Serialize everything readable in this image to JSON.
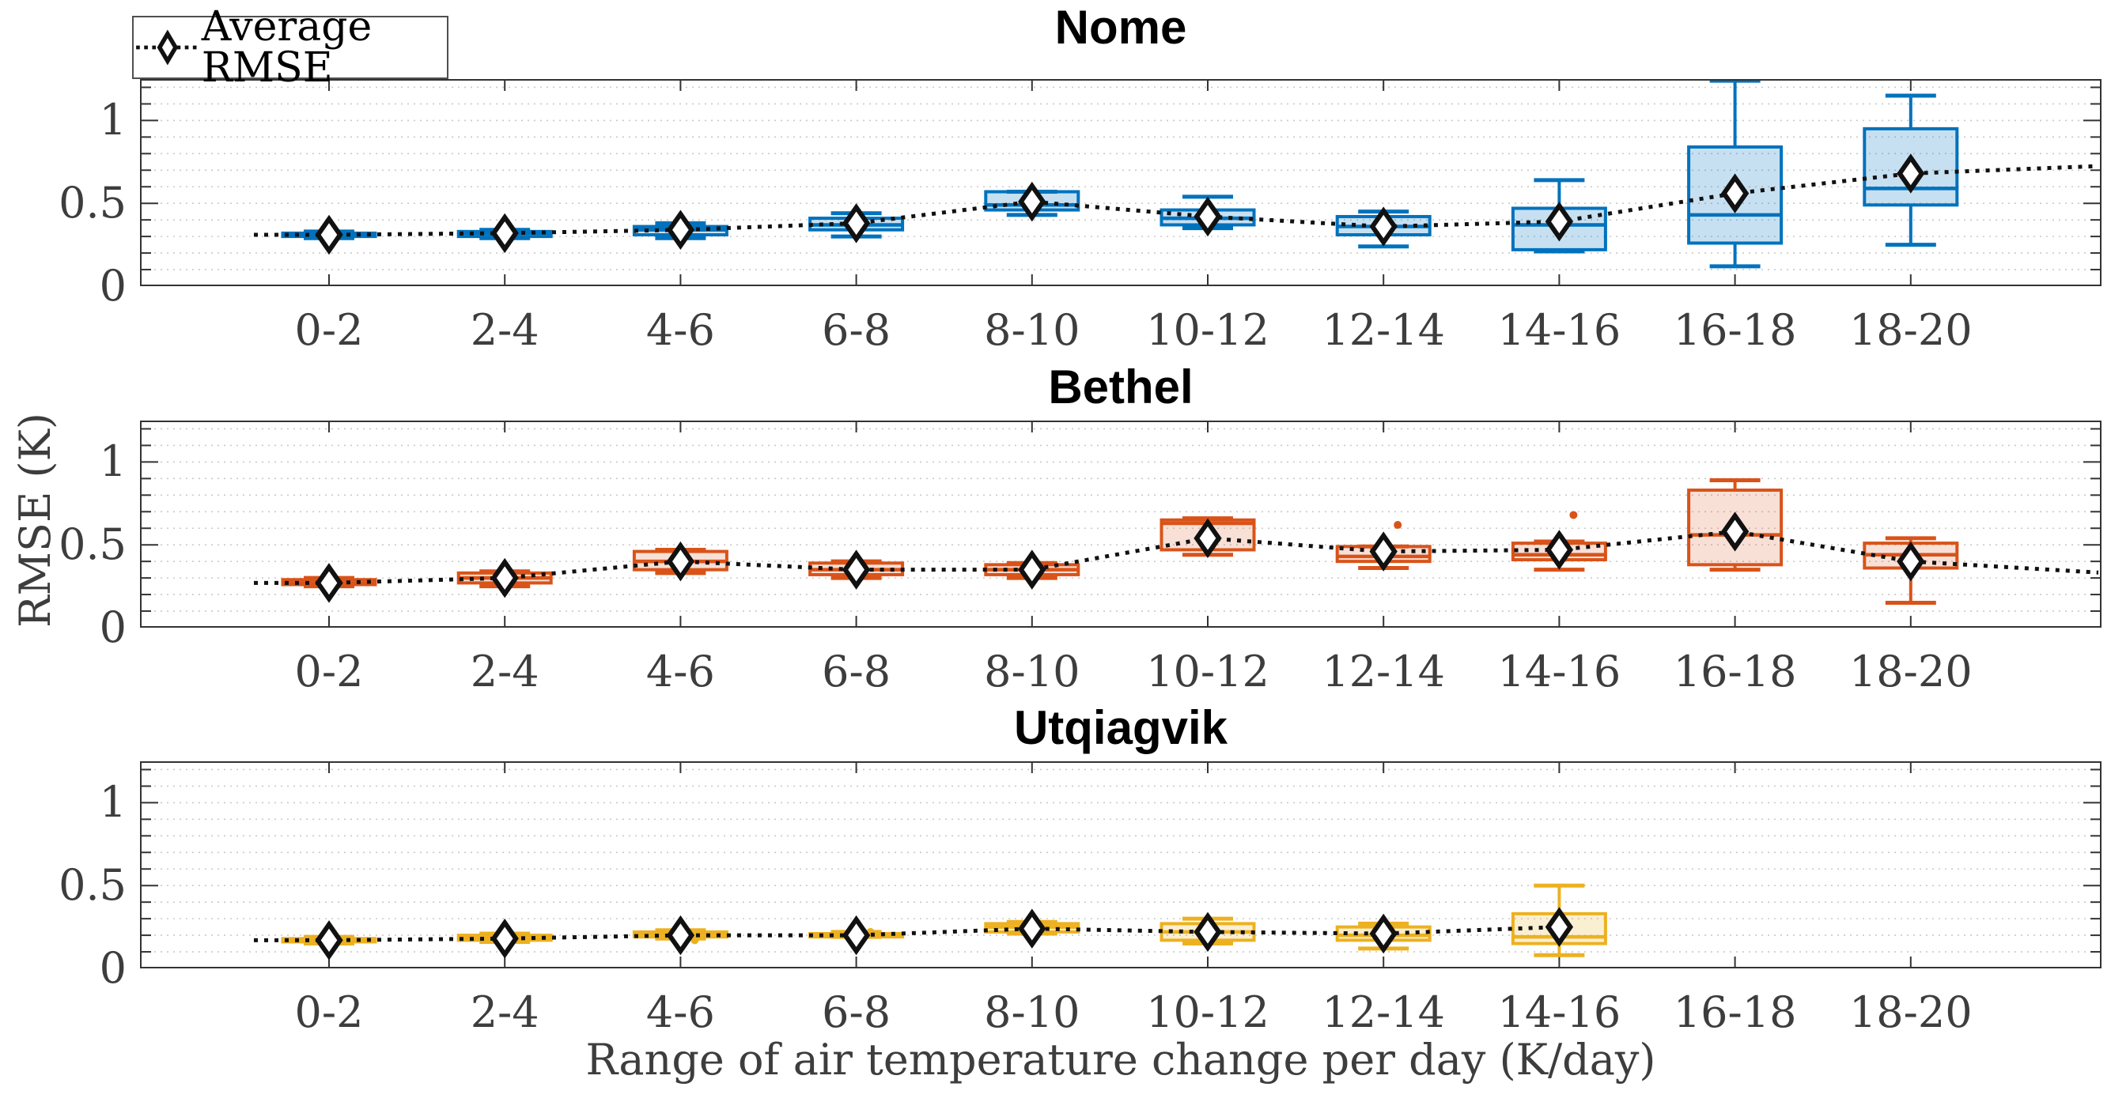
{
  "figure": {
    "legend_label": "Average RMSE",
    "x_axis_label": "Range of air temperature change per day (K/day)",
    "y_axis_label": "RMSE (K)"
  },
  "chart_data": {
    "type": "boxplot-grid",
    "title": "",
    "xlabel": "Range of air temperature change per day (K/day)",
    "ylabel": "RMSE (K)",
    "categories": [
      "0-2",
      "2-4",
      "4-6",
      "6-8",
      "8-10",
      "10-12",
      "12-14",
      "14-16",
      "16-18",
      "18-20"
    ],
    "y_tick_values": [
      0,
      0.5,
      1
    ],
    "y_tick_labels": [
      "0",
      "0.5",
      "1"
    ],
    "ylim": [
      0,
      1.25
    ],
    "minor_grid_step": 0.1,
    "grid": "horizontal dotted minor gridlines",
    "legend": {
      "label": "Average RMSE",
      "marker": "diamond",
      "line_style": "dotted",
      "line_color": "#111111",
      "marker_fill": "#ffffff",
      "position": "top-left"
    },
    "panels": [
      {
        "title": "Nome",
        "color": "#0072BD",
        "fill": "rgba(0,114,189,0.22)",
        "boxes": [
          {
            "category": "0-2",
            "whisker_low": 0.29,
            "q1": 0.3,
            "median": 0.31,
            "q3": 0.32,
            "whisker_high": 0.33,
            "mean": 0.31,
            "outliers": []
          },
          {
            "category": "2-4",
            "whisker_low": 0.29,
            "q1": 0.3,
            "median": 0.32,
            "q3": 0.33,
            "whisker_high": 0.34,
            "mean": 0.32,
            "outliers": []
          },
          {
            "category": "4-6",
            "whisker_low": 0.29,
            "q1": 0.31,
            "median": 0.34,
            "q3": 0.36,
            "whisker_high": 0.38,
            "mean": 0.34,
            "outliers": []
          },
          {
            "category": "6-8",
            "whisker_low": 0.3,
            "q1": 0.34,
            "median": 0.37,
            "q3": 0.41,
            "whisker_high": 0.44,
            "mean": 0.38,
            "outliers": []
          },
          {
            "category": "8-10",
            "whisker_low": 0.43,
            "q1": 0.46,
            "median": 0.49,
            "q3": 0.57,
            "whisker_high": 0.57,
            "mean": 0.51,
            "outliers": []
          },
          {
            "category": "10-12",
            "whisker_low": 0.35,
            "q1": 0.37,
            "median": 0.41,
            "q3": 0.46,
            "whisker_high": 0.54,
            "mean": 0.42,
            "outliers": []
          },
          {
            "category": "12-14",
            "whisker_low": 0.24,
            "q1": 0.31,
            "median": 0.36,
            "q3": 0.42,
            "whisker_high": 0.45,
            "mean": 0.36,
            "outliers": []
          },
          {
            "category": "14-16",
            "whisker_low": 0.21,
            "q1": 0.22,
            "median": 0.37,
            "q3": 0.47,
            "whisker_high": 0.64,
            "mean": 0.39,
            "outliers": []
          },
          {
            "category": "16-18",
            "whisker_low": 0.12,
            "q1": 0.26,
            "median": 0.43,
            "q3": 0.84,
            "whisker_high": 1.24,
            "mean": 0.56,
            "outliers": []
          },
          {
            "category": "18-20",
            "whisker_low": 0.25,
            "q1": 0.49,
            "median": 0.59,
            "q3": 0.95,
            "whisker_high": 1.15,
            "mean": 0.68,
            "outliers": []
          }
        ]
      },
      {
        "title": "Bethel",
        "color": "#D95319",
        "fill": "rgba(217,83,25,0.18)",
        "boxes": [
          {
            "category": "0-2",
            "whisker_low": 0.25,
            "q1": 0.26,
            "median": 0.27,
            "q3": 0.29,
            "whisker_high": 0.3,
            "mean": 0.27,
            "outliers": []
          },
          {
            "category": "2-4",
            "whisker_low": 0.25,
            "q1": 0.27,
            "median": 0.3,
            "q3": 0.33,
            "whisker_high": 0.34,
            "mean": 0.3,
            "outliers": []
          },
          {
            "category": "4-6",
            "whisker_low": 0.33,
            "q1": 0.35,
            "median": 0.4,
            "q3": 0.46,
            "whisker_high": 0.47,
            "mean": 0.4,
            "outliers": []
          },
          {
            "category": "6-8",
            "whisker_low": 0.3,
            "q1": 0.32,
            "median": 0.35,
            "q3": 0.39,
            "whisker_high": 0.4,
            "mean": 0.35,
            "outliers": []
          },
          {
            "category": "8-10",
            "whisker_low": 0.3,
            "q1": 0.32,
            "median": 0.35,
            "q3": 0.38,
            "whisker_high": 0.39,
            "mean": 0.35,
            "outliers": []
          },
          {
            "category": "10-12",
            "whisker_low": 0.44,
            "q1": 0.47,
            "median": 0.63,
            "q3": 0.65,
            "whisker_high": 0.66,
            "mean": 0.54,
            "outliers": []
          },
          {
            "category": "12-14",
            "whisker_low": 0.36,
            "q1": 0.4,
            "median": 0.43,
            "q3": 0.49,
            "whisker_high": 0.49,
            "mean": 0.46,
            "outliers": [
              0.62
            ]
          },
          {
            "category": "14-16",
            "whisker_low": 0.35,
            "q1": 0.41,
            "median": 0.44,
            "q3": 0.51,
            "whisker_high": 0.52,
            "mean": 0.47,
            "outliers": [
              0.68
            ]
          },
          {
            "category": "16-18",
            "whisker_low": 0.35,
            "q1": 0.38,
            "median": 0.56,
            "q3": 0.83,
            "whisker_high": 0.89,
            "mean": 0.58,
            "outliers": []
          },
          {
            "category": "18-20",
            "whisker_low": 0.15,
            "q1": 0.36,
            "median": 0.44,
            "q3": 0.51,
            "whisker_high": 0.54,
            "mean": 0.4,
            "outliers": []
          }
        ]
      },
      {
        "title": "Utqiagvik",
        "color": "#EDB120",
        "fill": "rgba(237,177,32,0.2)",
        "boxes": [
          {
            "category": "0-2",
            "whisker_low": 0.15,
            "q1": 0.16,
            "median": 0.17,
            "q3": 0.18,
            "whisker_high": 0.19,
            "mean": 0.17,
            "outliers": []
          },
          {
            "category": "2-4",
            "whisker_low": 0.16,
            "q1": 0.17,
            "median": 0.18,
            "q3": 0.2,
            "whisker_high": 0.21,
            "mean": 0.18,
            "outliers": []
          },
          {
            "category": "4-6",
            "whisker_low": 0.18,
            "q1": 0.19,
            "median": 0.21,
            "q3": 0.22,
            "whisker_high": 0.23,
            "mean": 0.2,
            "outliers": [
              0.17
            ]
          },
          {
            "category": "6-8",
            "whisker_low": 0.19,
            "q1": 0.19,
            "median": 0.2,
            "q3": 0.21,
            "whisker_high": 0.22,
            "mean": 0.2,
            "outliers": [
              0.22
            ]
          },
          {
            "category": "8-10",
            "whisker_low": 0.21,
            "q1": 0.22,
            "median": 0.25,
            "q3": 0.27,
            "whisker_high": 0.28,
            "mean": 0.24,
            "outliers": []
          },
          {
            "category": "10-12",
            "whisker_low": 0.15,
            "q1": 0.17,
            "median": 0.22,
            "q3": 0.27,
            "whisker_high": 0.3,
            "mean": 0.22,
            "outliers": []
          },
          {
            "category": "12-14",
            "whisker_low": 0.12,
            "q1": 0.17,
            "median": 0.2,
            "q3": 0.25,
            "whisker_high": 0.27,
            "mean": 0.21,
            "outliers": []
          },
          {
            "category": "14-16",
            "whisker_low": 0.08,
            "q1": 0.15,
            "median": 0.19,
            "q3": 0.33,
            "whisker_high": 0.5,
            "mean": 0.25,
            "outliers": []
          },
          null,
          null
        ]
      }
    ]
  }
}
